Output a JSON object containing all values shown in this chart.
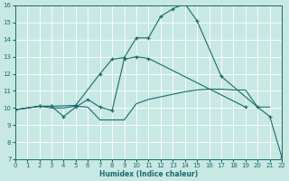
{
  "xlabel": "Humidex (Indice chaleur)",
  "xlim": [
    0,
    22
  ],
  "ylim": [
    7,
    16
  ],
  "xticks": [
    0,
    1,
    2,
    3,
    4,
    5,
    6,
    7,
    8,
    9,
    10,
    11,
    12,
    13,
    14,
    15,
    16,
    17,
    18,
    19,
    20,
    21,
    22
  ],
  "yticks": [
    7,
    8,
    9,
    10,
    11,
    12,
    13,
    14,
    15,
    16
  ],
  "bg_color": "#c8e8e4",
  "line_color": "#1a6b6b",
  "grid_color": "#ffffff",
  "lines": [
    {
      "x": [
        0,
        2,
        3,
        5,
        7,
        8,
        9,
        10,
        11,
        12,
        13,
        14,
        15,
        17,
        20,
        21,
        22
      ],
      "y": [
        9.9,
        10.1,
        10.1,
        10.15,
        12.0,
        12.85,
        12.95,
        14.1,
        14.1,
        15.35,
        15.8,
        16.1,
        15.1,
        11.85,
        10.05,
        9.5,
        7.1
      ],
      "marker": true
    },
    {
      "x": [
        0,
        2,
        3,
        4,
        5,
        6,
        7,
        8,
        9,
        10,
        11,
        19
      ],
      "y": [
        9.9,
        10.1,
        10.1,
        9.5,
        10.05,
        10.5,
        10.05,
        9.85,
        12.85,
        13.0,
        12.9,
        10.05
      ],
      "marker": true
    },
    {
      "x": [
        0,
        2,
        3,
        4,
        5,
        6,
        7,
        8,
        9,
        10,
        11,
        12,
        13,
        14,
        15,
        16,
        17,
        18,
        19,
        20,
        21
      ],
      "y": [
        9.9,
        10.1,
        10.0,
        10.0,
        10.1,
        10.05,
        9.3,
        9.3,
        9.3,
        10.25,
        10.5,
        10.65,
        10.8,
        10.95,
        11.05,
        11.1,
        11.1,
        11.05,
        11.05,
        10.05,
        10.05
      ],
      "marker": false
    }
  ]
}
